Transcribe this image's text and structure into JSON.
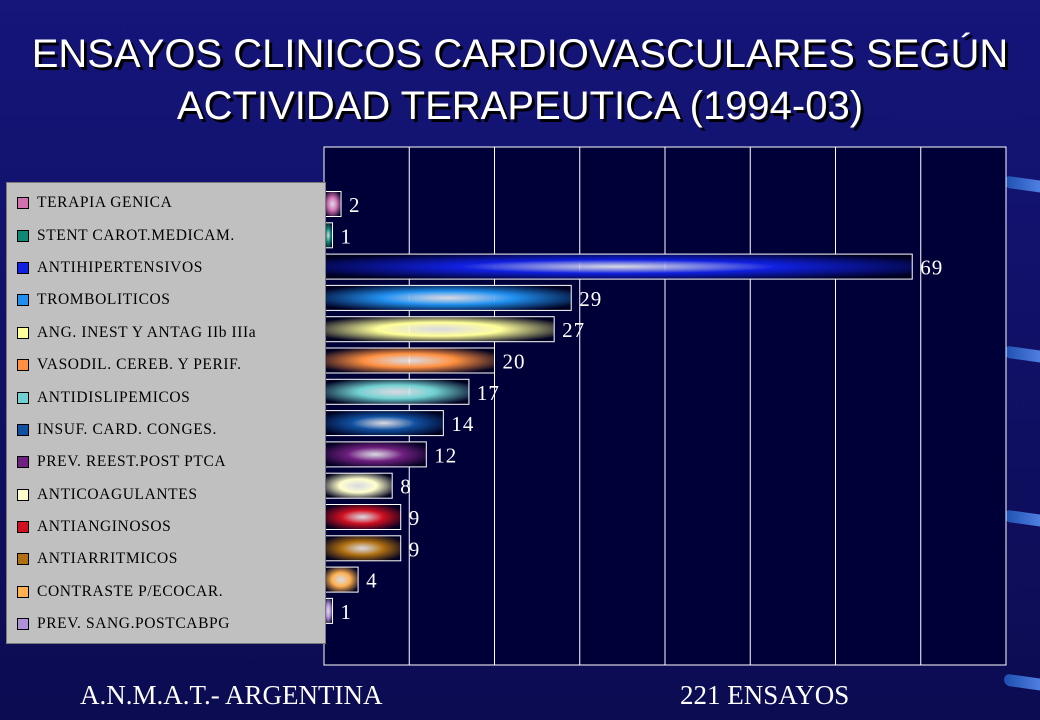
{
  "title": {
    "line1": "ENSAYOS CLINICOS CARDIOVASCULARES SEGÚN",
    "line2": "ACTIVIDAD TERAPEUTICA (1994-03)"
  },
  "footer": {
    "left": "A.N.M.A.T.- ARGENTINA",
    "right": "221 ENSAYOS"
  },
  "chart_data": {
    "type": "bar",
    "orientation": "horizontal",
    "xlim": [
      0,
      80
    ],
    "grid": true,
    "legend_position": "left",
    "categories": [
      "TERAPIA GENICA",
      "STENT CAROT.MEDICAM.",
      "ANTIHIPERTENSIVOS",
      "TROMBOLITICOS",
      "ANG. INEST Y ANTAG IIb IIIa",
      "VASODIL. CEREB. Y PERIF.",
      "ANTIDISLIPEMICOS",
      "INSUF. CARD. CONGES.",
      "PREV. REEST.POST PTCA",
      "ANTICOAGULANTES",
      "ANTIANGINOSOS",
      "ANTIARRITMICOS",
      "CONTRASTE P/ECOCAR.",
      "PREV. SANG.POSTCABPG"
    ],
    "values": [
      2,
      1,
      69,
      29,
      27,
      20,
      17,
      14,
      12,
      8,
      9,
      9,
      4,
      1
    ],
    "colors": [
      "#d070b0",
      "#108878",
      "#1020e0",
      "#2090f0",
      "#ffff99",
      "#ff9040",
      "#70d0d0",
      "#1050a0",
      "#702080",
      "#ffffcc",
      "#d01020",
      "#b07010",
      "#ffb050",
      "#b090d8"
    ]
  }
}
